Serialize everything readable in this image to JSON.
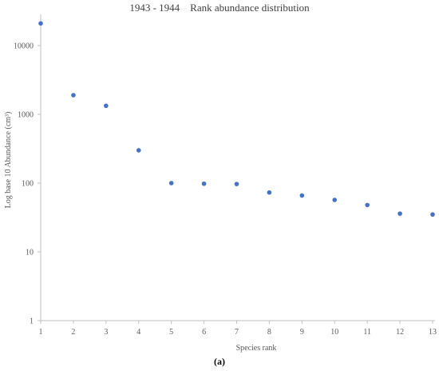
{
  "chart_data": {
    "type": "scatter",
    "title": "1943 - 1944    Rank abundance distribution",
    "xlabel": "Species rank",
    "ylabel": "Log base 10 Abundance (cm³)",
    "x": [
      1,
      2,
      3,
      4,
      5,
      6,
      7,
      8,
      9,
      10,
      11,
      12,
      13
    ],
    "y": [
      21000,
      1900,
      1330,
      300,
      100,
      98,
      97,
      73,
      66,
      57,
      48,
      36,
      35
    ],
    "xlim": [
      1,
      13
    ],
    "ylim": [
      1,
      30000
    ],
    "yscale": "log",
    "yticks": [
      "1",
      "10",
      "100",
      "1000",
      "10000"
    ],
    "xticks": [
      "1",
      "2",
      "3",
      "4",
      "5",
      "6",
      "7",
      "8",
      "9",
      "10",
      "11",
      "12",
      "13"
    ],
    "grid": false,
    "marker_color": "#4472C4"
  },
  "caption": "(a)"
}
